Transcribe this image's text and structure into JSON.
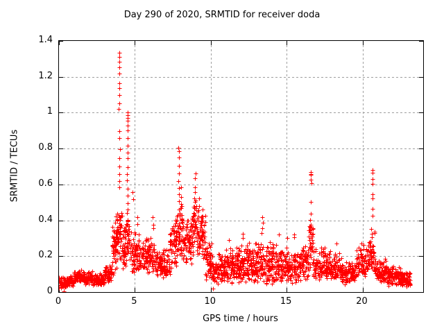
{
  "chart_data": {
    "type": "scatter",
    "title": "Day 290 of 2020, SRMTID for receiver doda",
    "xlabel": "GPS time / hours",
    "ylabel": "SRMTID / TECUs",
    "xlim": [
      0,
      24
    ],
    "ylim": [
      0,
      1.4
    ],
    "xticks": [
      0,
      5,
      10,
      15,
      20
    ],
    "xtick_labels": [
      "0",
      "5",
      "10",
      "15",
      "20"
    ],
    "yticks": [
      0,
      0.2,
      0.4,
      0.6,
      0.8,
      1.0,
      1.2,
      1.4
    ],
    "ytick_labels": [
      "0",
      "0.2",
      "0.4",
      "0.6",
      "0.8",
      "1",
      "1.2",
      "1.4"
    ],
    "grid": {
      "show": true,
      "style": "dashed",
      "color": "#9e9e9e"
    },
    "legend": "none",
    "series_name": "SRMTID",
    "marker": {
      "shape": "plus",
      "color": "#ff0000",
      "size": 7
    },
    "notable_peaks": [
      {
        "t": 4.0,
        "y": 1.33
      },
      {
        "t": 4.5,
        "y": 1.0
      },
      {
        "t": 7.9,
        "y": 0.81
      },
      {
        "t": 9.0,
        "y": 0.67
      },
      {
        "t": 16.6,
        "y": 0.67
      },
      {
        "t": 20.6,
        "y": 0.68
      }
    ],
    "baseline_bands": [
      [
        0.0,
        0.5,
        0.02,
        0.09,
        55
      ],
      [
        0.5,
        1.0,
        0.03,
        0.1,
        55
      ],
      [
        1.0,
        1.6,
        0.05,
        0.13,
        65
      ],
      [
        1.6,
        2.2,
        0.04,
        0.12,
        65
      ],
      [
        2.2,
        3.0,
        0.03,
        0.11,
        85
      ],
      [
        3.0,
        3.5,
        0.05,
        0.16,
        60
      ],
      [
        3.5,
        3.8,
        0.08,
        0.45,
        50
      ],
      [
        3.8,
        4.15,
        0.15,
        0.55,
        55
      ],
      [
        4.15,
        4.45,
        0.12,
        0.4,
        40
      ],
      [
        4.45,
        4.65,
        0.15,
        0.5,
        30
      ],
      [
        4.65,
        5.3,
        0.1,
        0.35,
        70
      ],
      [
        5.3,
        6.3,
        0.1,
        0.32,
        110
      ],
      [
        6.3,
        7.3,
        0.07,
        0.26,
        110
      ],
      [
        7.3,
        7.75,
        0.13,
        0.45,
        60
      ],
      [
        7.75,
        8.15,
        0.18,
        0.52,
        55
      ],
      [
        8.15,
        8.75,
        0.15,
        0.48,
        75
      ],
      [
        8.75,
        9.1,
        0.2,
        0.55,
        45
      ],
      [
        9.1,
        9.65,
        0.18,
        0.5,
        70
      ],
      [
        9.65,
        10.1,
        0.05,
        0.28,
        55
      ],
      [
        10.1,
        11.0,
        0.04,
        0.22,
        100
      ],
      [
        11.0,
        12.0,
        0.04,
        0.26,
        115
      ],
      [
        12.0,
        13.0,
        0.05,
        0.28,
        115
      ],
      [
        13.0,
        14.0,
        0.04,
        0.3,
        115
      ],
      [
        14.0,
        15.0,
        0.04,
        0.28,
        110
      ],
      [
        15.0,
        16.0,
        0.04,
        0.25,
        110
      ],
      [
        16.0,
        16.45,
        0.06,
        0.3,
        50
      ],
      [
        16.45,
        16.75,
        0.12,
        0.45,
        40
      ],
      [
        16.75,
        17.6,
        0.06,
        0.25,
        90
      ],
      [
        17.6,
        18.6,
        0.05,
        0.24,
        105
      ],
      [
        18.6,
        19.6,
        0.04,
        0.18,
        100
      ],
      [
        19.6,
        20.35,
        0.07,
        0.28,
        80
      ],
      [
        20.35,
        20.8,
        0.1,
        0.38,
        50
      ],
      [
        20.8,
        21.6,
        0.05,
        0.2,
        85
      ],
      [
        21.6,
        22.6,
        0.03,
        0.15,
        100
      ],
      [
        22.6,
        23.15,
        0.03,
        0.12,
        60
      ]
    ],
    "spike_columns": [
      {
        "t": 3.97,
        "ys": [
          0.58,
          0.62,
          0.66,
          0.7,
          0.75,
          0.8,
          0.86,
          0.9,
          1.02,
          1.05,
          1.1,
          1.14,
          1.17,
          1.22,
          1.25,
          1.28,
          1.31,
          1.33
        ]
      },
      {
        "t": 4.52,
        "ys": [
          0.46,
          0.5,
          0.54,
          0.58,
          0.62,
          0.66,
          0.7,
          0.74,
          0.78,
          0.82,
          0.86,
          0.9,
          0.93,
          0.95,
          0.97,
          0.99,
          1.0
        ]
      },
      {
        "t": 4.85,
        "ys": [
          0.52,
          0.56
        ]
      },
      {
        "t": 5.15,
        "ys": [
          0.38,
          0.42
        ]
      },
      {
        "t": 6.2,
        "ys": [
          0.35,
          0.38,
          0.42
        ]
      },
      {
        "t": 7.9,
        "ys": [
          0.5,
          0.54,
          0.58,
          0.62,
          0.66,
          0.7,
          0.75,
          0.78,
          0.81
        ]
      },
      {
        "t": 8.05,
        "ys": [
          0.48,
          0.53,
          0.58
        ]
      },
      {
        "t": 8.88,
        "ys": [
          0.44,
          0.48,
          0.52
        ]
      },
      {
        "t": 8.97,
        "ys": [
          0.5,
          0.55,
          0.59,
          0.63,
          0.66
        ]
      },
      {
        "t": 9.25,
        "ys": [
          0.48,
          0.52
        ]
      },
      {
        "t": 11.2,
        "ys": [
          0.29
        ]
      },
      {
        "t": 12.1,
        "ys": [
          0.3,
          0.32
        ]
      },
      {
        "t": 13.4,
        "ys": [
          0.33,
          0.36,
          0.39,
          0.42
        ]
      },
      {
        "t": 15.5,
        "ys": [
          0.3,
          0.32
        ]
      },
      {
        "t": 16.62,
        "ys": [
          0.44,
          0.5,
          0.61,
          0.63,
          0.65,
          0.66,
          0.67
        ]
      },
      {
        "t": 20.65,
        "ys": [
          0.43,
          0.47,
          0.52,
          0.55,
          0.6,
          0.63,
          0.66,
          0.68
        ]
      }
    ],
    "outliers": [
      [
        0.3,
        0.005
      ],
      [
        10.15,
        0.02
      ],
      [
        14.5,
        0.32
      ],
      [
        15.05,
        0.3
      ],
      [
        18.3,
        0.27
      ]
    ]
  }
}
